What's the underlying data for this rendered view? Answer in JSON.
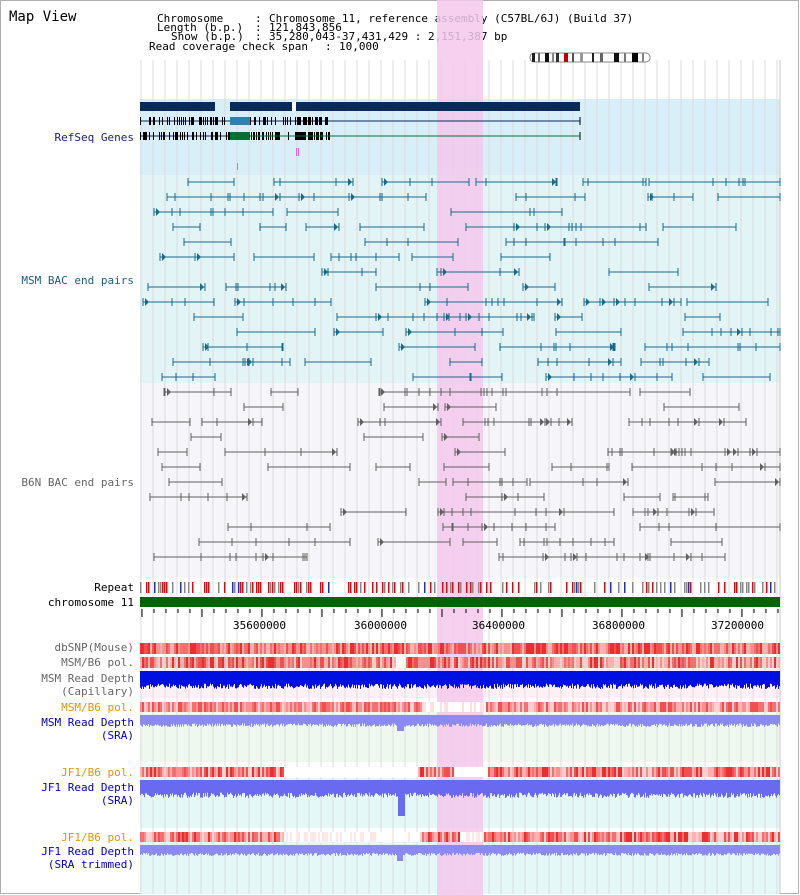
{
  "page_title": "Map View",
  "info": {
    "chromosome_label": "Chromosome",
    "chromosome_value": "Chromosome 11, reference assembly (C57BL/6J) (Build 37)",
    "length_label": "Length (b.p.)",
    "length_value": "121,843,856",
    "show_label": "Show (b.p.)",
    "show_value": "35,280,043-37,431,429 : 2,151,387 bp",
    "span_label": "Read coverage check span",
    "span_value": "10,000"
  },
  "tracks": {
    "refseq": "RefSeq Genes",
    "msm_bac": "MSM BAC end pairs",
    "b6n_bac": "B6N BAC end pairs",
    "repeat": "Repeat",
    "chromosome": "chromosome 11",
    "dbsnp": "dbSNP(Mouse)",
    "msm_pol": "MSM/B6 pol.",
    "msm_depth_cap_1": "MSM Read Depth",
    "msm_depth_cap_2": "(Capillary)",
    "msm_pol_2": "MSM/B6 pol.",
    "msm_depth_sra_1": "MSM Read Depth",
    "msm_depth_sra_2": "(SRA)",
    "jf1_pol": "JF1/B6 pol.",
    "jf1_depth_sra_1": "JF1 Read Depth",
    "jf1_depth_sra_2": "(SRA)",
    "jf1_pol_2": "JF1/B6 pol.",
    "jf1_depth_trim_1": "JF1 Read Depth",
    "jf1_depth_trim_2": "(SRA trimmed)"
  },
  "axis_ticks": [
    "35600000",
    "36000000",
    "36400000",
    "36800000",
    "37200000"
  ],
  "colors": {
    "refseq_label": "#1a1a8c",
    "msm_label": "#1a6080",
    "b6n_label": "#666666",
    "orange_label": "#e39500",
    "blue_label": "#0000c0",
    "highlight": "#f4c8ec",
    "chromosome_bar": "#006400"
  }
}
